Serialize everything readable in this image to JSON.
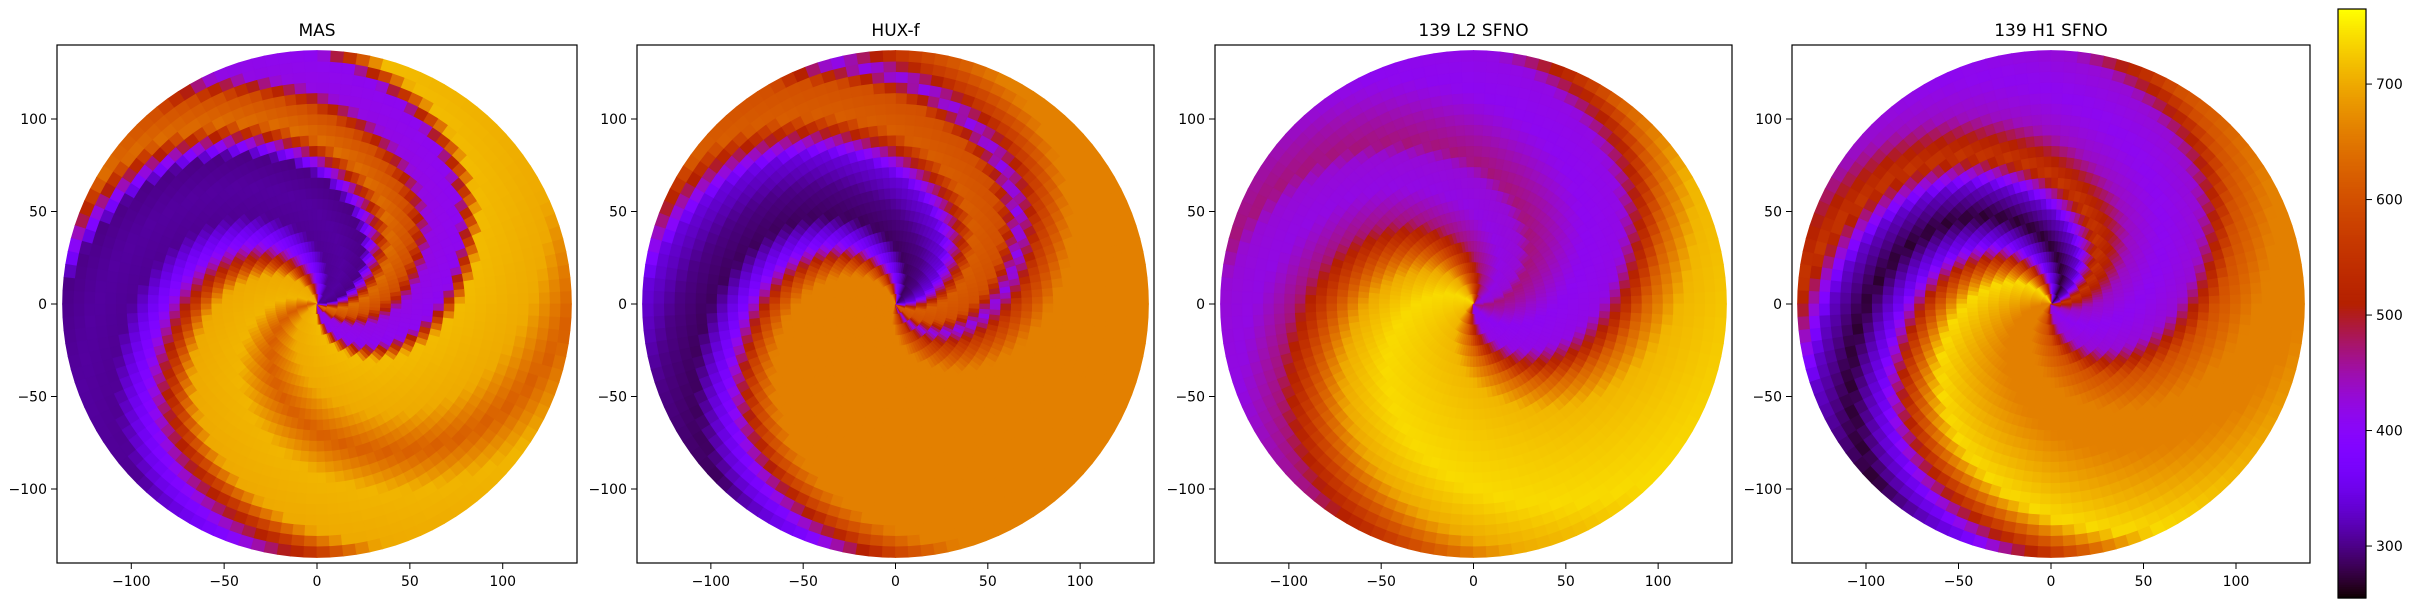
{
  "chart_data": {
    "type": "heatmap",
    "shared_colorbar": {
      "colormap": "gnuplot",
      "vmin": 255,
      "vmax": 765,
      "ticks": [
        300,
        400,
        500,
        600,
        700
      ]
    },
    "axes": {
      "xlim": [
        -140,
        140
      ],
      "ylim": [
        -140,
        140
      ],
      "xticks": [
        -100,
        -50,
        0,
        50,
        100
      ],
      "yticks": [
        -100,
        -50,
        0,
        50,
        100
      ],
      "grid": false
    },
    "panels": [
      {
        "title": "MAS",
        "approx_sector_values": [
          {
            "phi_deg": 0,
            "value": 300
          },
          {
            "phi_deg": 25,
            "value": 310
          },
          {
            "phi_deg": 50,
            "value": 305
          },
          {
            "phi_deg": 75,
            "value": 390
          },
          {
            "phi_deg": 95,
            "value": 560
          },
          {
            "phi_deg": 110,
            "value": 700
          },
          {
            "phi_deg": 150,
            "value": 710
          },
          {
            "phi_deg": 180,
            "value": 620
          },
          {
            "phi_deg": 210,
            "value": 700
          },
          {
            "phi_deg": 260,
            "value": 715
          },
          {
            "phi_deg": 275,
            "value": 410
          },
          {
            "phi_deg": 300,
            "value": 420
          },
          {
            "phi_deg": 315,
            "value": 600
          },
          {
            "phi_deg": 335,
            "value": 640
          },
          {
            "phi_deg": 350,
            "value": 430
          }
        ]
      },
      {
        "title": "HUX-f",
        "approx_sector_values": [
          {
            "phi_deg": 0,
            "value": 340
          },
          {
            "phi_deg": 25,
            "value": 300
          },
          {
            "phi_deg": 50,
            "value": 285
          },
          {
            "phi_deg": 75,
            "value": 380
          },
          {
            "phi_deg": 95,
            "value": 580
          },
          {
            "phi_deg": 110,
            "value": 660
          },
          {
            "phi_deg": 180,
            "value": 660
          },
          {
            "phi_deg": 250,
            "value": 660
          },
          {
            "phi_deg": 275,
            "value": 560
          },
          {
            "phi_deg": 290,
            "value": 410
          },
          {
            "phi_deg": 305,
            "value": 600
          },
          {
            "phi_deg": 330,
            "value": 620
          },
          {
            "phi_deg": 350,
            "value": 430
          }
        ]
      },
      {
        "title": "139 L2 SFNO",
        "approx_sector_values": [
          {
            "phi_deg": 0,
            "value": 430
          },
          {
            "phi_deg": 25,
            "value": 420
          },
          {
            "phi_deg": 55,
            "value": 470
          },
          {
            "phi_deg": 80,
            "value": 590
          },
          {
            "phi_deg": 105,
            "value": 700
          },
          {
            "phi_deg": 140,
            "value": 740
          },
          {
            "phi_deg": 180,
            "value": 725
          },
          {
            "phi_deg": 215,
            "value": 710
          },
          {
            "phi_deg": 240,
            "value": 620
          },
          {
            "phi_deg": 270,
            "value": 420
          },
          {
            "phi_deg": 300,
            "value": 410
          },
          {
            "phi_deg": 330,
            "value": 450
          },
          {
            "phi_deg": 350,
            "value": 470
          }
        ]
      },
      {
        "title": "139 H1 SFNO",
        "approx_sector_values": [
          {
            "phi_deg": 0,
            "value": 560
          },
          {
            "phi_deg": 25,
            "value": 330
          },
          {
            "phi_deg": 50,
            "value": 270
          },
          {
            "phi_deg": 75,
            "value": 360
          },
          {
            "phi_deg": 95,
            "value": 560
          },
          {
            "phi_deg": 120,
            "value": 740
          },
          {
            "phi_deg": 150,
            "value": 700
          },
          {
            "phi_deg": 180,
            "value": 660
          },
          {
            "phi_deg": 215,
            "value": 660
          },
          {
            "phi_deg": 245,
            "value": 600
          },
          {
            "phi_deg": 270,
            "value": 430
          },
          {
            "phi_deg": 300,
            "value": 410
          },
          {
            "phi_deg": 330,
            "value": 440
          },
          {
            "phi_deg": 350,
            "value": 520
          }
        ]
      }
    ]
  }
}
